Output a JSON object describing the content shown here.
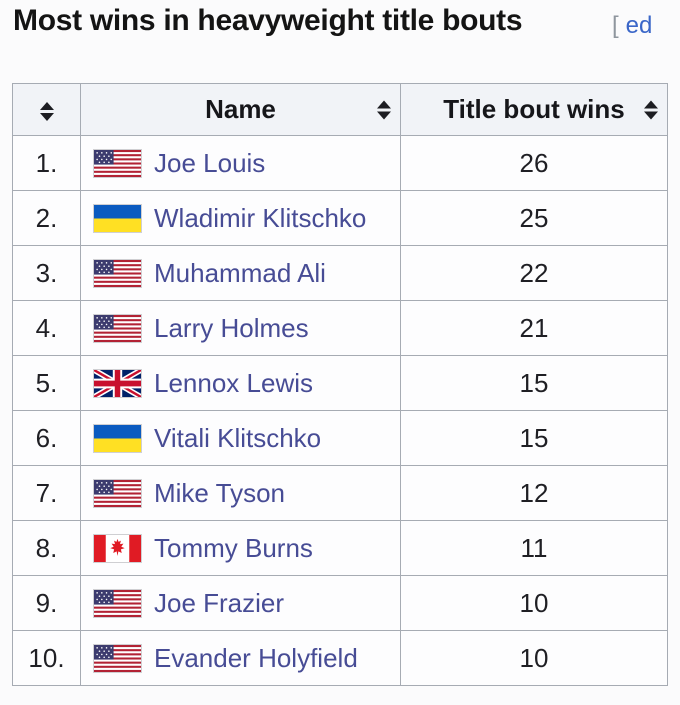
{
  "heading": {
    "title": "Most wins in heavyweight title bouts",
    "edit_bracket": "[",
    "edit_label": "ed"
  },
  "table": {
    "headers": {
      "rank": "",
      "name": "Name",
      "wins": "Title bout wins"
    },
    "sort_icon": "sort-arrows-icon",
    "rows": [
      {
        "rank": "1.",
        "flag": "us",
        "country": "United States",
        "name": "Joe Louis",
        "wins": 26
      },
      {
        "rank": "2.",
        "flag": "ua",
        "country": "Ukraine",
        "name": "Wladimir Klitschko",
        "wins": 25
      },
      {
        "rank": "3.",
        "flag": "us",
        "country": "United States",
        "name": "Muhammad Ali",
        "wins": 22
      },
      {
        "rank": "4.",
        "flag": "us",
        "country": "United States",
        "name": "Larry Holmes",
        "wins": 21
      },
      {
        "rank": "5.",
        "flag": "gb",
        "country": "United Kingdom",
        "name": "Lennox Lewis",
        "wins": 15
      },
      {
        "rank": "6.",
        "flag": "ua",
        "country": "Ukraine",
        "name": "Vitali Klitschko",
        "wins": 15
      },
      {
        "rank": "7.",
        "flag": "us",
        "country": "United States",
        "name": "Mike Tyson",
        "wins": 12
      },
      {
        "rank": "8.",
        "flag": "ca",
        "country": "Canada",
        "name": "Tommy Burns",
        "wins": 11
      },
      {
        "rank": "9.",
        "flag": "us",
        "country": "United States",
        "name": "Joe Frazier",
        "wins": 10
      },
      {
        "rank": "10.",
        "flag": "us",
        "country": "United States",
        "name": "Evander Holyfield",
        "wins": 10
      }
    ],
    "colors": {
      "header_bg": "#f1f3f7",
      "cell_bg": "#fdfdfe",
      "border": "#a6abb3",
      "link": "#474c95",
      "edit_link": "#3a66c8",
      "text": "#1f1f24"
    }
  }
}
